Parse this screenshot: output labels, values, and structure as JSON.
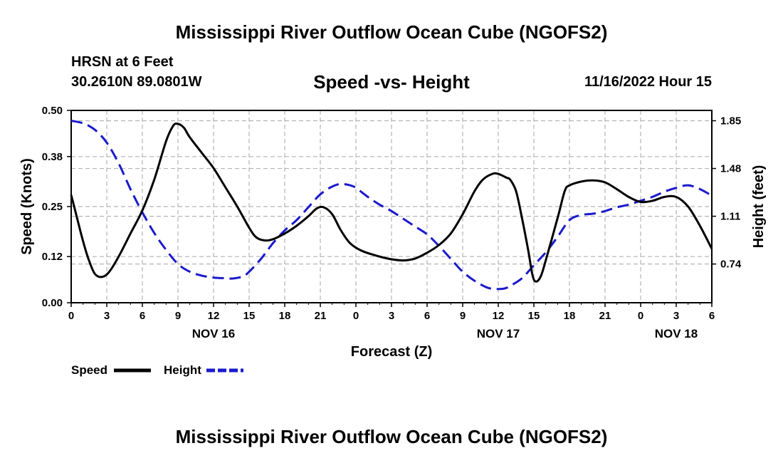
{
  "header": {
    "main_title": "Mississippi River Outflow Ocean Cube (NGOFS2)",
    "station": "HRSN at 6 Feet",
    "coords": "30.2610N  89.0801W",
    "subtitle": "Speed -vs- Height",
    "date": "11/16/2022 Hour 15"
  },
  "footer": {
    "title": "Mississippi River Outflow Ocean Cube (NGOFS2)"
  },
  "legend": {
    "speed_label": "Speed",
    "height_label": "Height"
  },
  "colors": {
    "speed": "#000000",
    "height": "#1a1acc",
    "grid": "#b4b4b4"
  },
  "chart_data": {
    "type": "line",
    "xlabel": "Forecast (Z)",
    "ylabel": "Speed (Knots)",
    "y2label": "Height (feet)",
    "ylim": [
      0,
      0.5
    ],
    "y2lim": [
      0.44,
      1.93
    ],
    "yticks": [
      "0.00",
      "0.12",
      "0.25",
      "0.38",
      "0.50"
    ],
    "y2ticks": [
      "0.74",
      "1.11",
      "1.48",
      "1.85"
    ],
    "xlim": [
      0,
      54
    ],
    "x_tick_labels": [
      "0",
      "3",
      "6",
      "9",
      "12",
      "15",
      "18",
      "21",
      "0",
      "3",
      "6",
      "9",
      "12",
      "15",
      "18",
      "21",
      "0",
      "3",
      "6"
    ],
    "day_labels": [
      {
        "label": "NOV 16",
        "hour": 12
      },
      {
        "label": "NOV 17",
        "hour": 36
      },
      {
        "label": "NOV 18",
        "hour": 51
      }
    ],
    "series": [
      {
        "name": "Speed",
        "axis": "left",
        "style": "solid",
        "points": [
          [
            0,
            0.28
          ],
          [
            0.5,
            0.22
          ],
          [
            1,
            0.16
          ],
          [
            1.5,
            0.11
          ],
          [
            2,
            0.075
          ],
          [
            2.6,
            0.067
          ],
          [
            3.2,
            0.08
          ],
          [
            4,
            0.12
          ],
          [
            5,
            0.18
          ],
          [
            6,
            0.24
          ],
          [
            7,
            0.32
          ],
          [
            8,
            0.42
          ],
          [
            8.6,
            0.46
          ],
          [
            9,
            0.465
          ],
          [
            9.5,
            0.455
          ],
          [
            10,
            0.43
          ],
          [
            11,
            0.39
          ],
          [
            12,
            0.35
          ],
          [
            13,
            0.3
          ],
          [
            14,
            0.25
          ],
          [
            15,
            0.195
          ],
          [
            15.6,
            0.17
          ],
          [
            16.3,
            0.162
          ],
          [
            17,
            0.165
          ],
          [
            18,
            0.18
          ],
          [
            19,
            0.2
          ],
          [
            20,
            0.225
          ],
          [
            20.7,
            0.245
          ],
          [
            21.3,
            0.248
          ],
          [
            22,
            0.23
          ],
          [
            22.7,
            0.19
          ],
          [
            23.5,
            0.155
          ],
          [
            24.5,
            0.135
          ],
          [
            26,
            0.12
          ],
          [
            27,
            0.113
          ],
          [
            28,
            0.11
          ],
          [
            29,
            0.115
          ],
          [
            30,
            0.13
          ],
          [
            31,
            0.15
          ],
          [
            32,
            0.18
          ],
          [
            33,
            0.23
          ],
          [
            34,
            0.29
          ],
          [
            34.7,
            0.32
          ],
          [
            35.5,
            0.335
          ],
          [
            36,
            0.335
          ],
          [
            36.7,
            0.325
          ],
          [
            37,
            0.32
          ],
          [
            37.5,
            0.29
          ],
          [
            38,
            0.22
          ],
          [
            38.5,
            0.14
          ],
          [
            38.9,
            0.07
          ],
          [
            39.2,
            0.055
          ],
          [
            39.6,
            0.07
          ],
          [
            40,
            0.11
          ],
          [
            41,
            0.22
          ],
          [
            41.6,
            0.29
          ],
          [
            42,
            0.305
          ],
          [
            43,
            0.315
          ],
          [
            44,
            0.318
          ],
          [
            45,
            0.313
          ],
          [
            46,
            0.295
          ],
          [
            47,
            0.275
          ],
          [
            48,
            0.262
          ],
          [
            49,
            0.265
          ],
          [
            50,
            0.275
          ],
          [
            51,
            0.275
          ],
          [
            52,
            0.25
          ],
          [
            53,
            0.2
          ],
          [
            54,
            0.14
          ]
        ]
      },
      {
        "name": "Height",
        "axis": "right",
        "style": "dashed",
        "points": [
          [
            0,
            1.85
          ],
          [
            1,
            1.83
          ],
          [
            2,
            1.78
          ],
          [
            3,
            1.68
          ],
          [
            4,
            1.52
          ],
          [
            5,
            1.32
          ],
          [
            6,
            1.14
          ],
          [
            7,
            0.98
          ],
          [
            8,
            0.85
          ],
          [
            9,
            0.74
          ],
          [
            10,
            0.68
          ],
          [
            11,
            0.65
          ],
          [
            12,
            0.635
          ],
          [
            13,
            0.63
          ],
          [
            13.7,
            0.628
          ],
          [
            14.5,
            0.645
          ],
          [
            15,
            0.68
          ],
          [
            16,
            0.78
          ],
          [
            17,
            0.9
          ],
          [
            18,
            1.0
          ],
          [
            19,
            1.08
          ],
          [
            20,
            1.18
          ],
          [
            21,
            1.28
          ],
          [
            22,
            1.34
          ],
          [
            22.7,
            1.36
          ],
          [
            23.5,
            1.35
          ],
          [
            24,
            1.33
          ],
          [
            25,
            1.26
          ],
          [
            26,
            1.2
          ],
          [
            27,
            1.15
          ],
          [
            28,
            1.09
          ],
          [
            29,
            1.03
          ],
          [
            30,
            0.97
          ],
          [
            31,
            0.88
          ],
          [
            32,
            0.78
          ],
          [
            33,
            0.68
          ],
          [
            34,
            0.61
          ],
          [
            35,
            0.56
          ],
          [
            35.7,
            0.547
          ],
          [
            36.5,
            0.55
          ],
          [
            37,
            0.57
          ],
          [
            38,
            0.63
          ],
          [
            39,
            0.73
          ],
          [
            40,
            0.83
          ],
          [
            41,
            0.95
          ],
          [
            42,
            1.08
          ],
          [
            43,
            1.12
          ],
          [
            44,
            1.13
          ],
          [
            45,
            1.15
          ],
          [
            46,
            1.18
          ],
          [
            47,
            1.2
          ],
          [
            48,
            1.23
          ],
          [
            49,
            1.26
          ],
          [
            50,
            1.3
          ],
          [
            51,
            1.33
          ],
          [
            52,
            1.35
          ],
          [
            53,
            1.32
          ],
          [
            54,
            1.27
          ]
        ]
      }
    ],
    "legend_position": "bottom-left"
  }
}
